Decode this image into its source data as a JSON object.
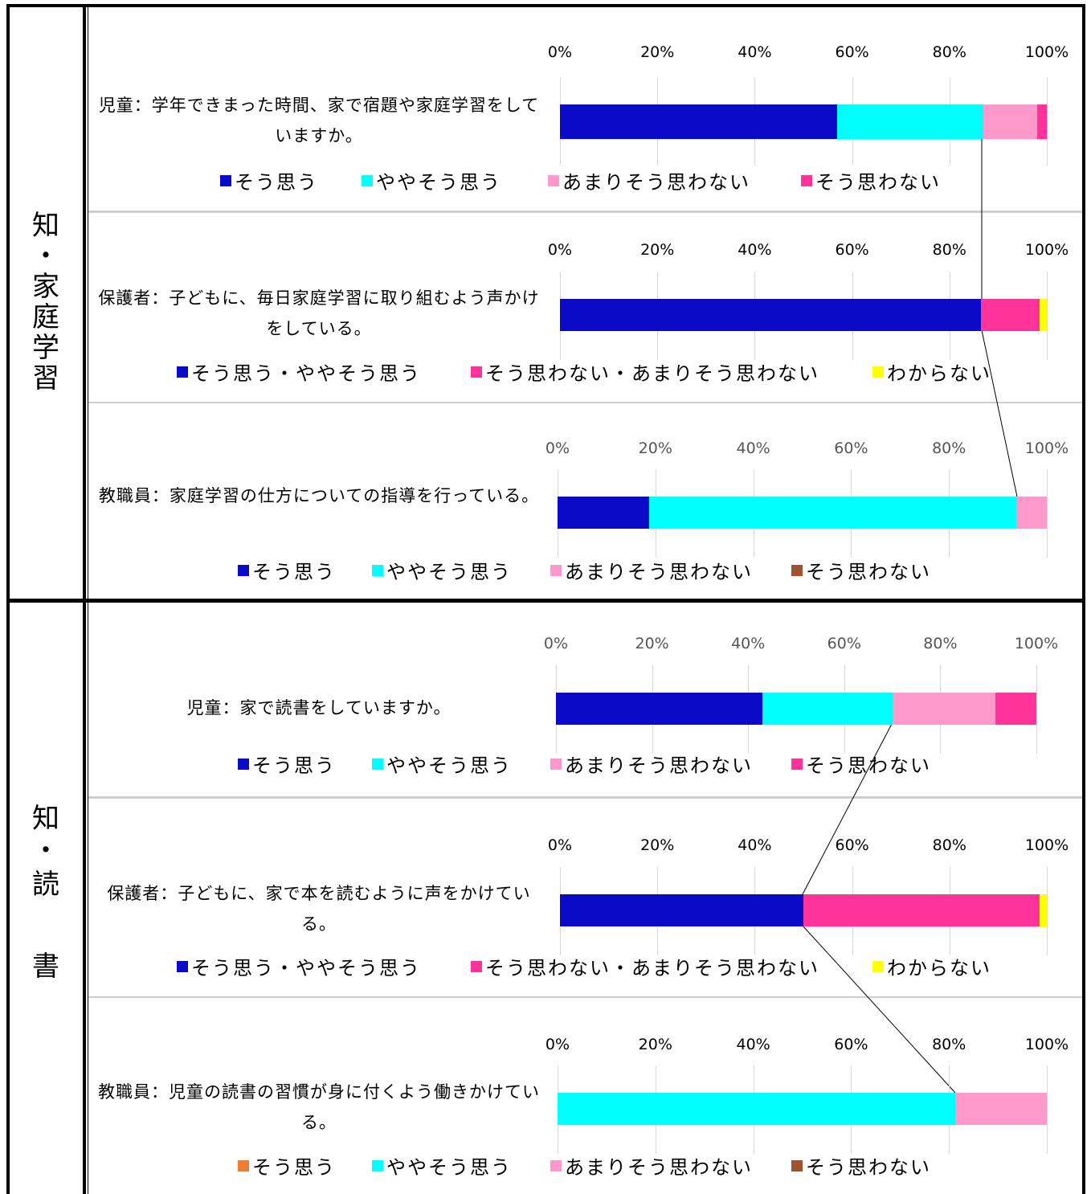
{
  "sections": [
    {
      "label_chars": [
        "知",
        "・",
        "家",
        "庭",
        "学",
        "習"
      ]
    },
    {
      "label_chars": [
        "知",
        "・",
        "読",
        "書"
      ]
    }
  ],
  "axis_ticks": [
    "0%",
    "20%",
    "40%",
    "60%",
    "80%",
    "100%"
  ],
  "colors": {
    "blue": "#0a0ac8",
    "cyan": "#00ffff",
    "pink": "#ff99cc",
    "magenta": "#ff3399",
    "yellow": "#ffff00",
    "brown": "#a0522d",
    "orange": "#ed7d31"
  },
  "chart_data": [
    {
      "type": "bar",
      "stacked": true,
      "orientation": "horizontal",
      "question": "児童：学年できまった時間、家で宿題や家庭学習をしていますか。",
      "series": [
        {
          "name": "そう思う",
          "value": 57,
          "color": "#0a0ac8"
        },
        {
          "name": "ややそう思う",
          "value": 30,
          "color": "#00ffff"
        },
        {
          "name": "あまりそう思わない",
          "value": 11,
          "color": "#ff99cc"
        },
        {
          "name": "そう思わない",
          "value": 2,
          "color": "#ff3399"
        }
      ],
      "xlim": [
        0,
        100
      ]
    },
    {
      "type": "bar",
      "stacked": true,
      "orientation": "horizontal",
      "question": "保護者：子どもに、毎日家庭学習に取り組むよう声かけをしている。",
      "series": [
        {
          "name": "そう思う・ややそう思う",
          "value": 86.5,
          "color": "#0a0ac8"
        },
        {
          "name": "そう思わない・あまりそう思わない",
          "value": 12,
          "color": "#ff3399"
        },
        {
          "name": "わからない",
          "value": 1.5,
          "color": "#ffff00"
        }
      ],
      "xlim": [
        0,
        100
      ]
    },
    {
      "type": "bar",
      "stacked": true,
      "orientation": "horizontal",
      "question": "教職員：家庭学習の仕方についての指導を行っている。",
      "series": [
        {
          "name": "そう思う",
          "value": 18.75,
          "color": "#0a0ac8"
        },
        {
          "name": "ややそう思う",
          "value": 75,
          "color": "#00ffff"
        },
        {
          "name": "あまりそう思わない",
          "value": 6.25,
          "color": "#ff99cc"
        },
        {
          "name": "そう思わない",
          "value": 0,
          "color": "#a0522d"
        }
      ],
      "xlim": [
        0,
        100
      ]
    },
    {
      "type": "bar",
      "stacked": true,
      "orientation": "horizontal",
      "question": "児童：家で読書をしていますか。",
      "series": [
        {
          "name": "そう思う",
          "value": 43,
          "color": "#0a0ac8"
        },
        {
          "name": "ややそう思う",
          "value": 27,
          "color": "#00ffff"
        },
        {
          "name": "あまりそう思わない",
          "value": 21.5,
          "color": "#ff99cc"
        },
        {
          "name": "そう思わない",
          "value": 8.5,
          "color": "#ff3399"
        }
      ],
      "xlim": [
        0,
        100
      ]
    },
    {
      "type": "bar",
      "stacked": true,
      "orientation": "horizontal",
      "question": "保護者：子どもに、家で本を読むように声をかけている。",
      "series": [
        {
          "name": "そう思う・ややそう思う",
          "value": 50,
          "color": "#0a0ac8"
        },
        {
          "name": "そう思わない・あまりそう思わない",
          "value": 48.5,
          "color": "#ff3399"
        },
        {
          "name": "わからない",
          "value": 1.5,
          "color": "#ffff00"
        }
      ],
      "xlim": [
        0,
        100
      ]
    },
    {
      "type": "bar",
      "stacked": true,
      "orientation": "horizontal",
      "question": "教職員：児童の読書の習慣が身に付くよう働きかけている。",
      "series": [
        {
          "name": "そう思う",
          "value": 0,
          "color": "#ed7d31"
        },
        {
          "name": "ややそう思う",
          "value": 81.25,
          "color": "#00ffff"
        },
        {
          "name": "あまりそう思わない",
          "value": 18.75,
          "color": "#ff99cc"
        },
        {
          "name": "そう思わない",
          "value": 0,
          "color": "#a0522d"
        }
      ],
      "xlim": [
        0,
        100
      ]
    }
  ]
}
